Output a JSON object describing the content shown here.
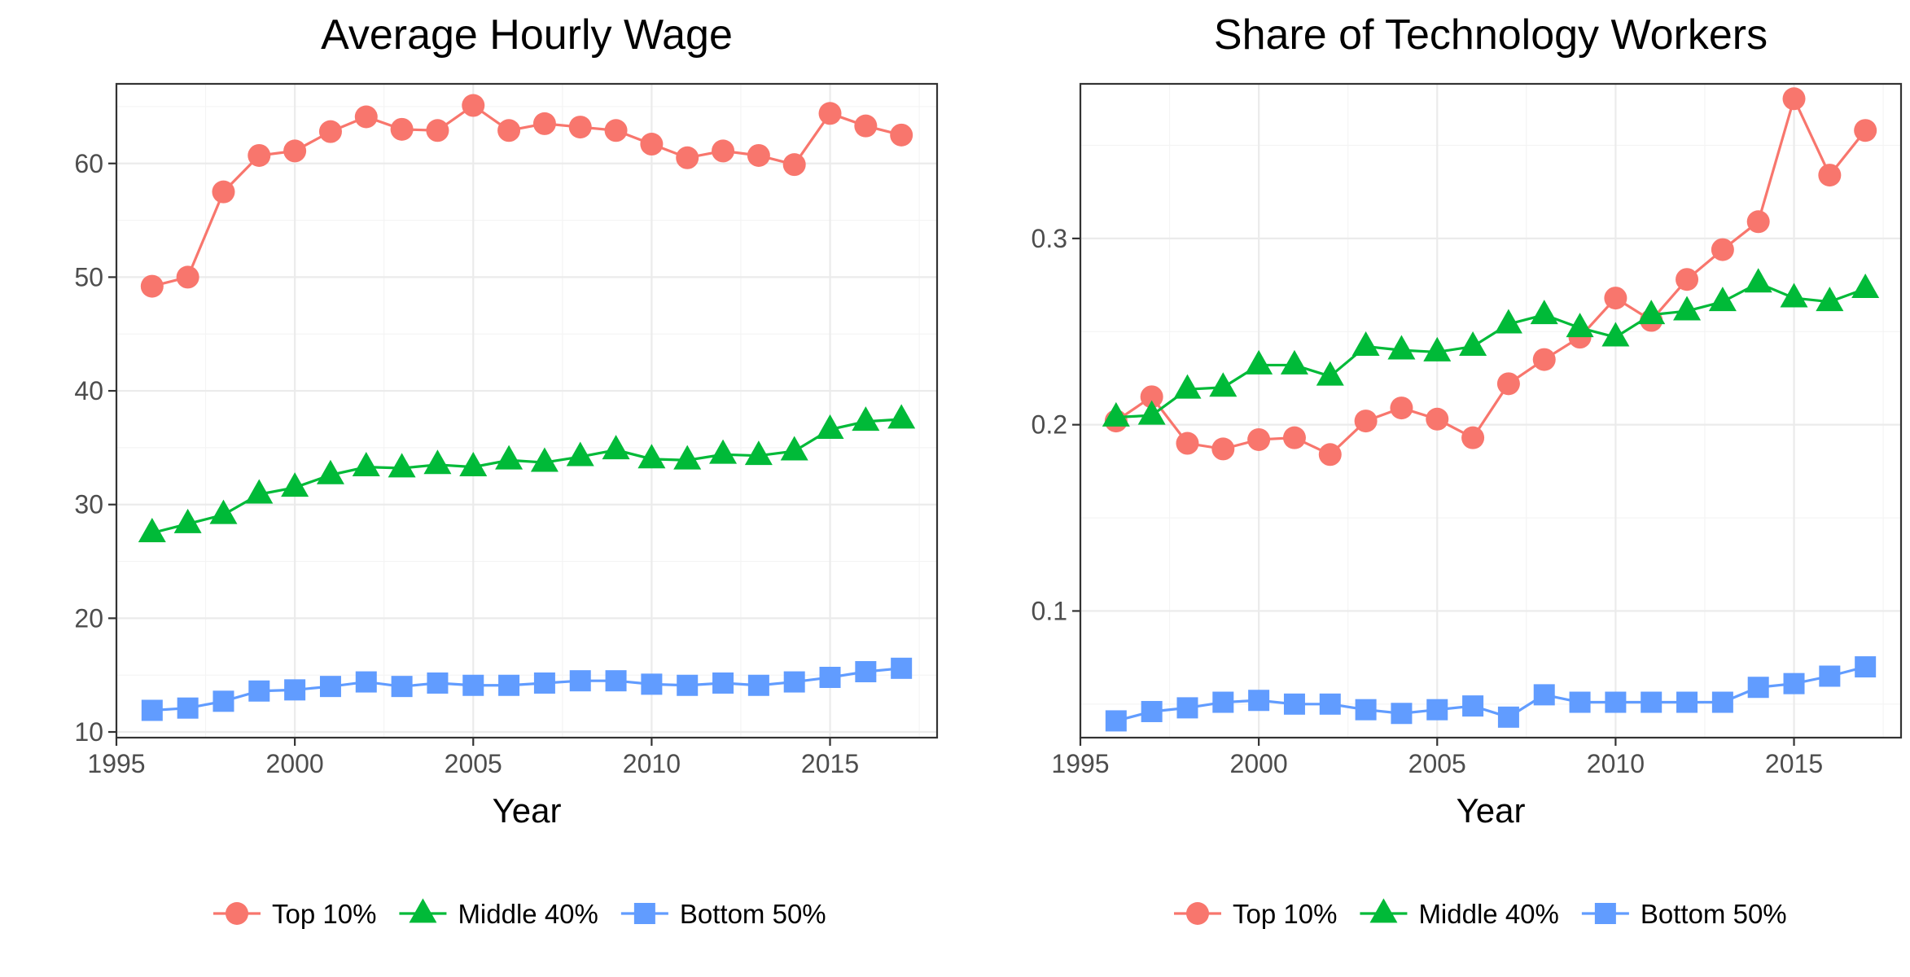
{
  "colors": {
    "top": "#F8766D",
    "middle": "#00BA38",
    "bottom": "#619CFF"
  },
  "chart_data": [
    {
      "type": "line",
      "title": "Average Hourly Wage",
      "xlabel": "Year",
      "ylabel": "",
      "xlim": [
        1995,
        2018
      ],
      "ylim": [
        9.5,
        67
      ],
      "xticks": [
        1995,
        2000,
        2005,
        2010,
        2015
      ],
      "xtick_labels": [
        "1995",
        "2000",
        "2005",
        "2010",
        "2015"
      ],
      "yticks": [
        10,
        20,
        30,
        40,
        50,
        60
      ],
      "ytick_labels": [
        "10",
        "20",
        "30",
        "40",
        "50",
        "60"
      ],
      "grid": true,
      "legend_position": "bottom",
      "x": [
        1996,
        1997,
        1998,
        1999,
        2000,
        2001,
        2002,
        2003,
        2004,
        2005,
        2006,
        2007,
        2008,
        2009,
        2010,
        2011,
        2012,
        2013,
        2014,
        2015,
        2016,
        2017
      ],
      "series": [
        {
          "name": "Top 10%",
          "color_key": "top",
          "marker": "circle",
          "values": [
            49.2,
            50.0,
            57.5,
            60.7,
            61.1,
            62.8,
            64.1,
            63.0,
            62.9,
            65.1,
            62.9,
            63.5,
            63.2,
            62.9,
            61.7,
            60.5,
            61.1,
            60.7,
            59.9,
            64.4,
            63.3,
            62.5
          ]
        },
        {
          "name": "Middle 40%",
          "color_key": "middle",
          "marker": "triangle",
          "values": [
            27.5,
            28.3,
            29.1,
            30.9,
            31.5,
            32.6,
            33.3,
            33.2,
            33.5,
            33.3,
            33.9,
            33.7,
            34.2,
            34.8,
            34.0,
            33.9,
            34.4,
            34.3,
            34.7,
            36.6,
            37.3,
            37.5
          ]
        },
        {
          "name": "Bottom 50%",
          "color_key": "bottom",
          "marker": "square",
          "values": [
            11.9,
            12.1,
            12.7,
            13.6,
            13.7,
            14.0,
            14.4,
            14.0,
            14.3,
            14.1,
            14.1,
            14.3,
            14.5,
            14.5,
            14.2,
            14.1,
            14.3,
            14.1,
            14.4,
            14.8,
            15.3,
            15.6
          ]
        }
      ]
    },
    {
      "type": "line",
      "title": "Share of Technology Workers",
      "xlabel": "Year",
      "ylabel": "",
      "xlim": [
        1995,
        2018
      ],
      "ylim": [
        0.032,
        0.383
      ],
      "xticks": [
        1995,
        2000,
        2005,
        2010,
        2015
      ],
      "xtick_labels": [
        "1995",
        "2000",
        "2005",
        "2010",
        "2015"
      ],
      "yticks": [
        0.1,
        0.2,
        0.3
      ],
      "ytick_labels": [
        "0.1",
        "0.2",
        "0.3"
      ],
      "grid": true,
      "legend_position": "bottom",
      "x": [
        1996,
        1997,
        1998,
        1999,
        2000,
        2001,
        2002,
        2003,
        2004,
        2005,
        2006,
        2007,
        2008,
        2009,
        2010,
        2011,
        2012,
        2013,
        2014,
        2015,
        2016,
        2017
      ],
      "series": [
        {
          "name": "Top 10%",
          "color_key": "top",
          "marker": "circle",
          "values": [
            0.202,
            0.215,
            0.19,
            0.187,
            0.192,
            0.193,
            0.184,
            0.202,
            0.209,
            0.203,
            0.193,
            0.222,
            0.235,
            0.247,
            0.268,
            0.256,
            0.278,
            0.294,
            0.309,
            0.375,
            0.334,
            0.358
          ]
        },
        {
          "name": "Middle 40%",
          "color_key": "middle",
          "marker": "triangle",
          "values": [
            0.204,
            0.205,
            0.219,
            0.22,
            0.232,
            0.232,
            0.226,
            0.242,
            0.24,
            0.239,
            0.242,
            0.254,
            0.259,
            0.252,
            0.247,
            0.259,
            0.261,
            0.266,
            0.276,
            0.268,
            0.266,
            0.273
          ]
        },
        {
          "name": "Bottom 50%",
          "color_key": "bottom",
          "marker": "square",
          "values": [
            0.041,
            0.046,
            0.048,
            0.051,
            0.052,
            0.05,
            0.05,
            0.047,
            0.045,
            0.047,
            0.049,
            0.043,
            0.055,
            0.051,
            0.051,
            0.051,
            0.051,
            0.051,
            0.059,
            0.061,
            0.065,
            0.07
          ]
        }
      ]
    }
  ]
}
